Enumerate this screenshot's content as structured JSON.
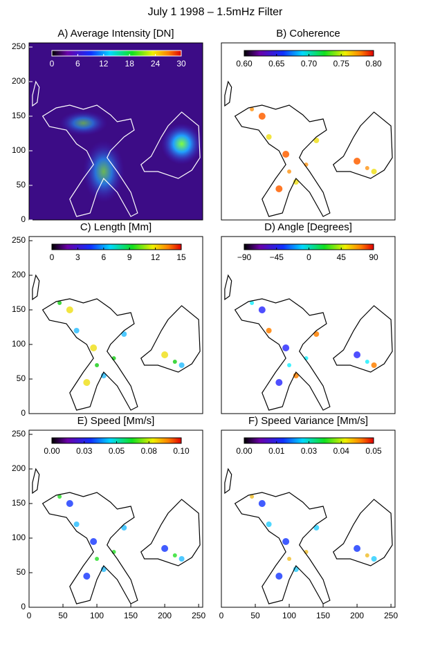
{
  "title": "July 1 1998 – 1.5mHz Filter",
  "chart_data": [
    {
      "type": "image",
      "title": "A) Average Intensity [DN]",
      "xlim": [
        0,
        256
      ],
      "ylim": [
        0,
        256
      ],
      "yticks": [
        0,
        50,
        100,
        150,
        200,
        250
      ],
      "colorbar": {
        "lim": [
          0,
          30
        ],
        "ticks": [
          0,
          6,
          12,
          18,
          24,
          30
        ]
      }
    },
    {
      "type": "image",
      "title": "B) Coherence",
      "xlim": [
        0,
        256
      ],
      "ylim": [
        0,
        256
      ],
      "colorbar": {
        "lim": [
          0.6,
          0.8
        ],
        "ticks": [
          {
            "value": 0.6,
            "label": "0.60"
          },
          {
            "value": 0.65,
            "label": "0.65"
          },
          {
            "value": 0.7,
            "label": "0.70"
          },
          {
            "value": 0.75,
            "label": "0.75"
          },
          {
            "value": 0.8,
            "label": "0.80"
          }
        ]
      }
    },
    {
      "type": "image",
      "title": "C) Length [Mm]",
      "xlim": [
        0,
        256
      ],
      "ylim": [
        0,
        256
      ],
      "yticks": [
        0,
        50,
        100,
        150,
        200,
        250
      ],
      "colorbar": {
        "lim": [
          0,
          15
        ],
        "ticks": [
          0,
          3,
          6,
          9,
          12,
          15
        ]
      }
    },
    {
      "type": "image",
      "title": "D) Angle [Degrees]",
      "xlim": [
        0,
        256
      ],
      "ylim": [
        0,
        256
      ],
      "colorbar": {
        "lim": [
          -90,
          90
        ],
        "ticks": [
          {
            "value": -90,
            "label": "−90"
          },
          {
            "value": -45,
            "label": "−45"
          },
          0,
          45,
          90
        ]
      }
    },
    {
      "type": "image",
      "title": "E) Speed [Mm/s]",
      "xlim": [
        0,
        256
      ],
      "ylim": [
        0,
        256
      ],
      "yticks": [
        0,
        50,
        100,
        150,
        200,
        250
      ],
      "xticks": [
        0,
        50,
        100,
        150,
        200,
        250
      ],
      "colorbar": {
        "lim": [
          0,
          0.1
        ],
        "ticks": [
          {
            "value": 0,
            "label": "0.00"
          },
          {
            "value": 0.025,
            "label": "0.03"
          },
          {
            "value": 0.05,
            "label": "0.05"
          },
          {
            "value": 0.075,
            "label": "0.08"
          },
          {
            "value": 0.1,
            "label": "0.10"
          }
        ]
      }
    },
    {
      "type": "image",
      "title": "F) Speed Variance [Mm/s]",
      "xlim": [
        0,
        256
      ],
      "ylim": [
        0,
        256
      ],
      "xticks": [
        0,
        50,
        100,
        150,
        200,
        250
      ],
      "colorbar": {
        "lim": [
          0,
          0.05
        ],
        "ticks": [
          {
            "value": 0,
            "label": "0.00"
          },
          {
            "value": 0.0125,
            "label": "0.01"
          },
          {
            "value": 0.025,
            "label": "0.03"
          },
          {
            "value": 0.0375,
            "label": "0.04"
          },
          {
            "value": 0.05,
            "label": "0.05"
          }
        ]
      }
    }
  ]
}
